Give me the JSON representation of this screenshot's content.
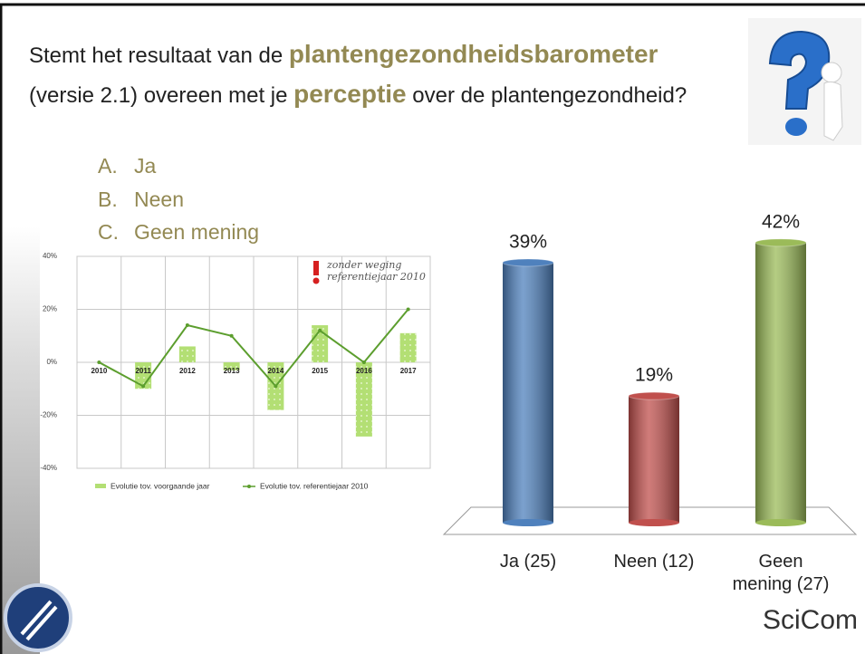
{
  "question": {
    "parts": [
      "Stemt het resultaat van de ",
      "plantengezondheidsbarometer",
      "(versie 2.1) overeen met je ",
      "perceptie",
      " over de plantengezondheid?"
    ]
  },
  "options": [
    {
      "letter": "A.",
      "text": "Ja"
    },
    {
      "letter": "B.",
      "text": "Neen"
    },
    {
      "letter": "C.",
      "text": "Geen mening"
    }
  ],
  "logo": "SciCom",
  "chart_data": [
    {
      "type": "combo",
      "categories": [
        "2010",
        "2011",
        "2012",
        "2013",
        "2014",
        "2015",
        "2016",
        "2017"
      ],
      "series": [
        {
          "name": "Evolutie tov. voorgaande jaar",
          "type": "bar",
          "color": "#b3df74",
          "values": [
            null,
            -10,
            6,
            -3,
            -18,
            14,
            -28,
            11
          ]
        },
        {
          "name": "Evolutie tov. referentiejaar 2010",
          "type": "line",
          "color": "#5c9e2e",
          "values": [
            0,
            -9,
            14,
            10,
            -9,
            12,
            0,
            20
          ]
        }
      ],
      "ylim": [
        -40,
        40
      ],
      "yticks": [
        {
          "value": -40,
          "label": "-40%"
        },
        {
          "value": -20,
          "label": "-20%"
        },
        {
          "value": 0,
          "label": "0%"
        },
        {
          "value": 20,
          "label": "20%"
        },
        {
          "value": 40,
          "label": "40%"
        }
      ],
      "grid": true,
      "annotations": [
        "zonder weging",
        "referentiejaar 2010"
      ]
    },
    {
      "type": "bar",
      "categories": [
        "Ja (25)",
        "Neen (12)",
        "Geen mening (27)"
      ],
      "values": [
        39,
        19,
        42
      ],
      "value_labels": [
        "39%",
        "19%",
        "42%"
      ],
      "colors": [
        "#4f81bd",
        "#c0504d",
        "#9bbb59"
      ]
    }
  ]
}
